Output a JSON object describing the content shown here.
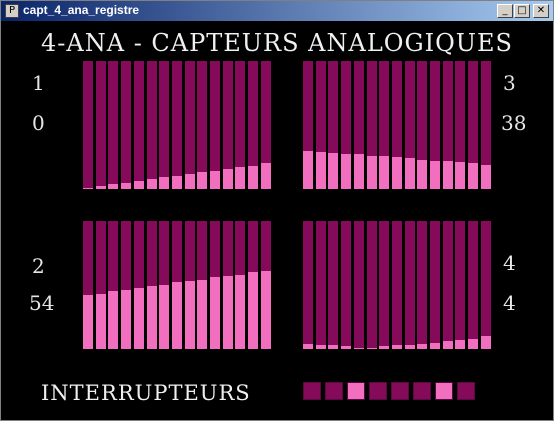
{
  "window": {
    "title": "capt_4_ana_registre",
    "minimize_label": "_",
    "maximize_label": "□",
    "close_label": "✕",
    "app_icon": "P"
  },
  "heading": "4-ANA - CAPTEURS ANALOGIQUES",
  "colors": {
    "bar_bg": "#860a5a",
    "bar_fill": "#f26fbf",
    "background": "#000000"
  },
  "sensors": [
    {
      "id": "1",
      "value": "0",
      "levels": [
        0.01,
        0.02,
        0.04,
        0.05,
        0.06,
        0.08,
        0.09,
        0.1,
        0.12,
        0.13,
        0.14,
        0.16,
        0.17,
        0.18,
        0.2
      ]
    },
    {
      "id": "2",
      "value": "54",
      "levels": [
        0.42,
        0.43,
        0.45,
        0.46,
        0.48,
        0.49,
        0.5,
        0.52,
        0.53,
        0.54,
        0.56,
        0.57,
        0.58,
        0.6,
        0.61
      ]
    },
    {
      "id": "3",
      "value": "38",
      "levels": [
        0.3,
        0.29,
        0.28,
        0.27,
        0.27,
        0.26,
        0.26,
        0.25,
        0.24,
        0.23,
        0.22,
        0.22,
        0.21,
        0.2,
        0.19
      ]
    },
    {
      "id": "4",
      "value": "4",
      "levels": [
        0.04,
        0.03,
        0.03,
        0.02,
        0.01,
        0.01,
        0.02,
        0.03,
        0.03,
        0.04,
        0.05,
        0.06,
        0.07,
        0.08,
        0.1
      ]
    }
  ],
  "interrupteurs": {
    "label": "INTERRUPTEURS",
    "states": [
      0,
      0,
      1,
      0,
      0,
      0,
      1,
      0
    ]
  }
}
